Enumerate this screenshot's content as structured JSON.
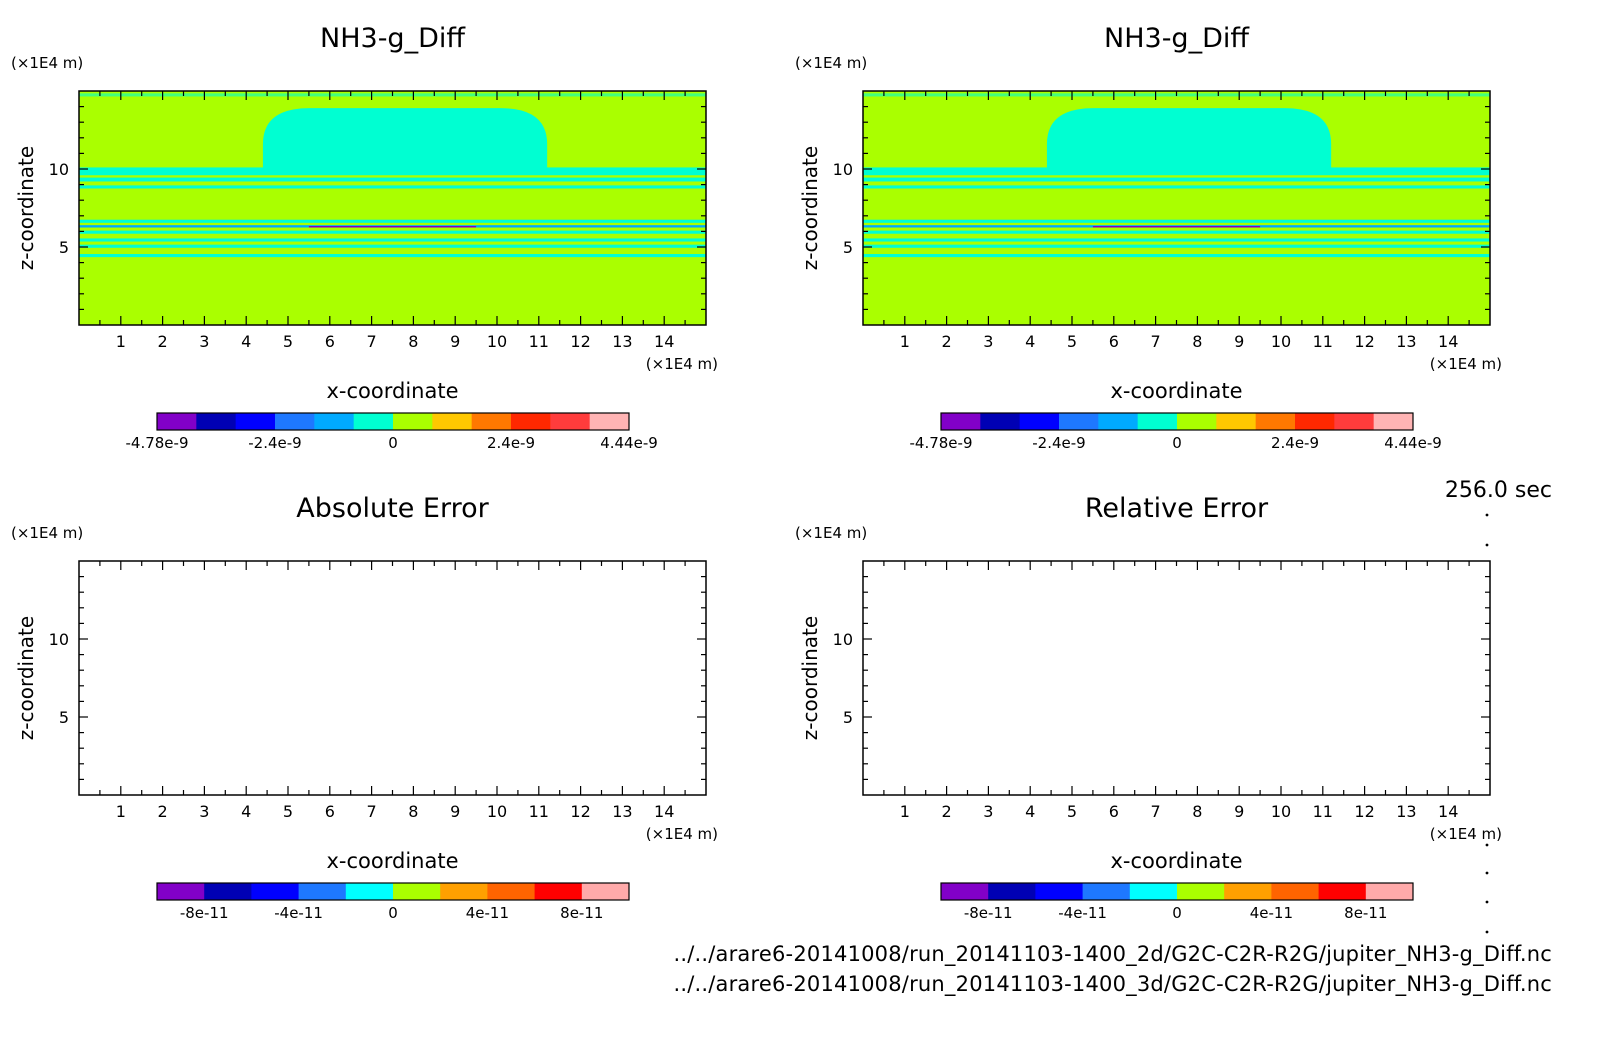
{
  "chart_data": [
    {
      "type": "heatmap",
      "title": "NH3-g_Diff",
      "xlabel": "x-coordinate",
      "ylabel": "z-coordinate",
      "x_unit": "(×1E4 m)",
      "y_unit": "(×1E4 m)",
      "xlim": [
        0,
        15
      ],
      "ylim": [
        0,
        15
      ],
      "xticks": [
        "1",
        "2",
        "3",
        "4",
        "5",
        "6",
        "7",
        "8",
        "9",
        "10",
        "11",
        "12",
        "13",
        "14"
      ],
      "yticks": [
        "5",
        "10"
      ],
      "colorbar": {
        "colors": [
          "#8200c8",
          "#0000b4",
          "#0000ff",
          "#1e78ff",
          "#00aaff",
          "#00ffd2",
          "#aaff00",
          "#ffc800",
          "#ff7800",
          "#ff2800",
          "#ff3c3c",
          "#ffb4b4"
        ],
        "labels": [
          "-4.78e-9",
          "-2.4e-9",
          "0",
          "2.4e-9",
          "4.44e-9"
        ]
      },
      "field": {
        "background": "#aaff00",
        "dome": {
          "x": [
            4.4,
            11.2
          ],
          "z": [
            10.1,
            13.9
          ],
          "color": "#00ffd2"
        },
        "bands": [
          {
            "z": [
              9.6,
              10.1
            ],
            "color": "#00ffd2"
          },
          {
            "z": [
              9.2,
              9.45
            ],
            "color": "#00ffd2"
          },
          {
            "z": [
              8.75,
              8.95
            ],
            "color": "#00ffd2"
          },
          {
            "z": [
              6.55,
              6.75
            ],
            "color": "#00ffd2"
          },
          {
            "z": [
              6.25,
              6.4
            ],
            "color": "#00aaff"
          },
          {
            "z": [
              5.85,
              6.05
            ],
            "color": "#00ffd2"
          },
          {
            "z": [
              5.35,
              5.55
            ],
            "color": "#00ffd2"
          },
          {
            "z": [
              4.95,
              5.15
            ],
            "color": "#00ffd2"
          },
          {
            "z": [
              4.35,
              4.55
            ],
            "color": "#00ffd2"
          }
        ],
        "top_band": {
          "z": [
            14.65,
            14.85
          ],
          "color": "#00ffd2"
        },
        "center_line": {
          "x": [
            5.5,
            9.5
          ],
          "z": 6.3,
          "color": "#8200c8"
        }
      }
    },
    {
      "type": "heatmap",
      "title": "NH3-g_Diff",
      "xlabel": "x-coordinate",
      "ylabel": "z-coordinate",
      "x_unit": "(×1E4 m)",
      "y_unit": "(×1E4 m)",
      "xlim": [
        0,
        15
      ],
      "ylim": [
        0,
        15
      ],
      "xticks": [
        "1",
        "2",
        "3",
        "4",
        "5",
        "6",
        "7",
        "8",
        "9",
        "10",
        "11",
        "12",
        "13",
        "14"
      ],
      "yticks": [
        "5",
        "10"
      ],
      "colorbar": {
        "colors": [
          "#8200c8",
          "#0000b4",
          "#0000ff",
          "#1e78ff",
          "#00aaff",
          "#00ffd2",
          "#aaff00",
          "#ffc800",
          "#ff7800",
          "#ff2800",
          "#ff3c3c",
          "#ffb4b4"
        ],
        "labels": [
          "-4.78e-9",
          "-2.4e-9",
          "0",
          "2.4e-9",
          "4.44e-9"
        ]
      },
      "field": {
        "background": "#aaff00",
        "dome": {
          "x": [
            4.4,
            11.2
          ],
          "z": [
            10.1,
            13.9
          ],
          "color": "#00ffd2"
        },
        "bands": [
          {
            "z": [
              9.6,
              10.1
            ],
            "color": "#00ffd2"
          },
          {
            "z": [
              9.2,
              9.45
            ],
            "color": "#00ffd2"
          },
          {
            "z": [
              8.75,
              8.95
            ],
            "color": "#00ffd2"
          },
          {
            "z": [
              6.55,
              6.75
            ],
            "color": "#00ffd2"
          },
          {
            "z": [
              6.25,
              6.4
            ],
            "color": "#00aaff"
          },
          {
            "z": [
              5.85,
              6.05
            ],
            "color": "#00ffd2"
          },
          {
            "z": [
              5.35,
              5.55
            ],
            "color": "#00ffd2"
          },
          {
            "z": [
              4.95,
              5.15
            ],
            "color": "#00ffd2"
          },
          {
            "z": [
              4.35,
              4.55
            ],
            "color": "#00ffd2"
          }
        ],
        "top_band": {
          "z": [
            14.65,
            14.85
          ],
          "color": "#00ffd2"
        },
        "center_line": {
          "x": [
            5.5,
            9.5
          ],
          "z": 6.3,
          "color": "#8200c8"
        }
      }
    },
    {
      "type": "heatmap",
      "title": "Absolute Error",
      "xlabel": "x-coordinate",
      "ylabel": "z-coordinate",
      "x_unit": "(×1E4 m)",
      "y_unit": "(×1E4 m)",
      "xlim": [
        0,
        15
      ],
      "ylim": [
        0,
        15
      ],
      "xticks": [
        "1",
        "2",
        "3",
        "4",
        "5",
        "6",
        "7",
        "8",
        "9",
        "10",
        "11",
        "12",
        "13",
        "14"
      ],
      "yticks": [
        "5",
        "10"
      ],
      "colorbar": {
        "colors": [
          "#8200c8",
          "#0000b4",
          "#0000ff",
          "#1e78ff",
          "#00ffff",
          "#aaff00",
          "#ffa000",
          "#ff6400",
          "#ff0000",
          "#ffaaaa"
        ],
        "labels": [
          "-8e-11",
          "-4e-11",
          "0",
          "4e-11",
          "8e-11"
        ]
      },
      "field": null
    },
    {
      "type": "heatmap",
      "title": "Relative Error",
      "xlabel": "x-coordinate",
      "ylabel": "z-coordinate",
      "x_unit": "(×1E4 m)",
      "y_unit": "(×1E4 m)",
      "xlim": [
        0,
        15
      ],
      "ylim": [
        0,
        15
      ],
      "xticks": [
        "1",
        "2",
        "3",
        "4",
        "5",
        "6",
        "7",
        "8",
        "9",
        "10",
        "11",
        "12",
        "13",
        "14"
      ],
      "yticks": [
        "5",
        "10"
      ],
      "colorbar": {
        "colors": [
          "#8200c8",
          "#0000b4",
          "#0000ff",
          "#1e78ff",
          "#00ffff",
          "#aaff00",
          "#ffa000",
          "#ff6400",
          "#ff0000",
          "#ffaaaa"
        ],
        "labels": [
          "-8e-11",
          "-4e-11",
          "0",
          "4e-11",
          "8e-11"
        ]
      },
      "field": null
    }
  ],
  "time_label": "256.0 sec",
  "footer": [
    "../../arare6-20141008/run_20141103-1400_2d/G2C-C2R-R2G/jupiter_NH3-g_Diff.nc",
    "../../arare6-20141008/run_20141103-1400_3d/G2C-C2R-R2G/jupiter_NH3-g_Diff.nc"
  ]
}
